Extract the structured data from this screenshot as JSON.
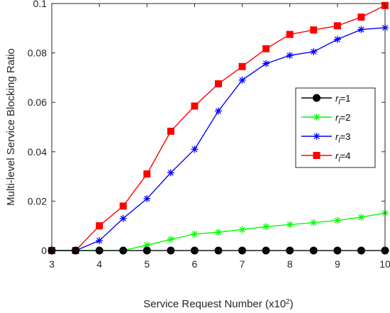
{
  "chart_data": {
    "type": "line",
    "title": "",
    "xlabel": "Service Request Number (x10",
    "xlabel_sup": "2",
    "xlabel_end": ")",
    "ylabel": "Multi-level Service Blocking Ratio",
    "xlim": [
      3,
      10
    ],
    "ylim": [
      0,
      0.1
    ],
    "xticks": [
      3,
      4,
      5,
      6,
      7,
      8,
      9,
      10
    ],
    "yticks": [
      0,
      0.02,
      0.04,
      0.06,
      0.08,
      0.1
    ],
    "ytick_labels": [
      "0",
      "0.02",
      "0.04",
      "0.06",
      "0.08",
      "0.1"
    ],
    "grid": false,
    "legend_position": "center-right",
    "x": [
      3,
      3.5,
      4,
      4.5,
      5,
      5.5,
      6,
      6.5,
      7,
      7.5,
      8,
      8.5,
      9,
      9.5,
      10
    ],
    "series": [
      {
        "legend_base": "r",
        "legend_sub": "l",
        "legend_suffix": "=1",
        "color": "#000000",
        "marker": "circle",
        "values": [
          0,
          0,
          0,
          0,
          0,
          0,
          0,
          0,
          0,
          0,
          0,
          0,
          0,
          0,
          0
        ]
      },
      {
        "legend_base": "r",
        "legend_sub": "l",
        "legend_suffix": "=2",
        "color": "#00ff00",
        "marker": "asterisk",
        "values": [
          0,
          0,
          0,
          0,
          0.0022,
          0.0045,
          0.0067,
          0.0074,
          0.0085,
          0.0097,
          0.0105,
          0.0113,
          0.0122,
          0.0135,
          0.0152
        ]
      },
      {
        "legend_base": "r",
        "legend_sub": "l",
        "legend_suffix": "=3",
        "color": "#0000ff",
        "marker": "asterisk",
        "values": [
          0,
          0,
          0.004,
          0.013,
          0.021,
          0.0315,
          0.041,
          0.0565,
          0.069,
          0.0757,
          0.079,
          0.0805,
          0.0855,
          0.0895,
          0.0902
        ]
      },
      {
        "legend_base": "r",
        "legend_sub": "l",
        "legend_suffix": "=4",
        "color": "#ff0000",
        "marker": "square",
        "values": [
          0,
          0,
          0.01,
          0.018,
          0.031,
          0.0483,
          0.0585,
          0.0675,
          0.0745,
          0.0817,
          0.0875,
          0.0893,
          0.091,
          0.0945,
          0.0992
        ]
      }
    ]
  }
}
